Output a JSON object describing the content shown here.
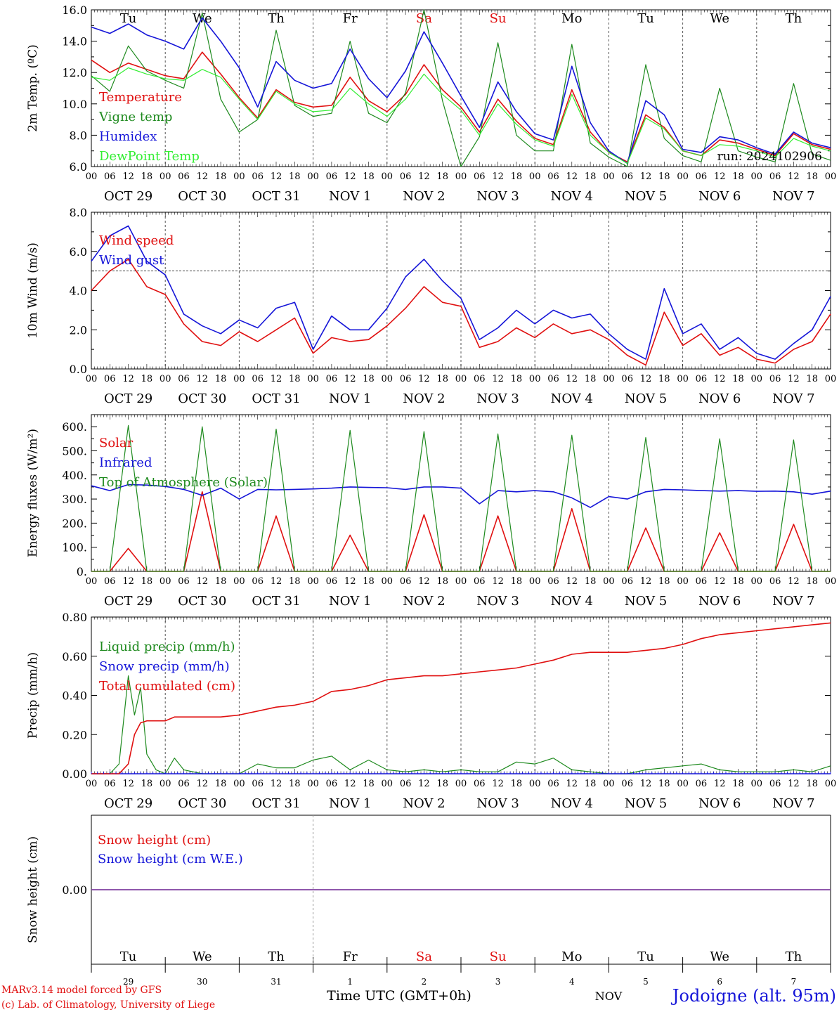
{
  "colors": {
    "red": "#e01010",
    "darkgreen": "#1e8a1e",
    "blue": "#1515d8",
    "lightgreen": "#33ee33",
    "purple": "#8040a0",
    "axis": "#000000",
    "grid": "#555555"
  },
  "day_labels": [
    "Tu",
    "We",
    "Th",
    "Fr",
    "Sa",
    "Su",
    "Mo",
    "Tu",
    "We",
    "Th"
  ],
  "weekend_indices": [
    4,
    5
  ],
  "date_labels": [
    "OCT 29",
    "OCT 30",
    "OCT 31",
    "NOV  1",
    "NOV  2",
    "NOV  3",
    "NOV  4",
    "NOV  5",
    "NOV  6",
    "NOV  7"
  ],
  "hour_labels": [
    "00",
    "06",
    "12",
    "18"
  ],
  "bottom_day_numbers": [
    "29",
    "30",
    "31",
    "1",
    "2",
    "3",
    "4",
    "5",
    "6",
    "7"
  ],
  "footer": {
    "model_line1": "MARv3.14 model forced by GFS",
    "model_line2": "(c) Lab. of Climatology, University of Liege",
    "time_axis_label": "Time UTC (GMT+0h)",
    "month_label": "NOV",
    "station": "Jodoigne (alt. 95m)"
  },
  "chart_data": [
    {
      "type": "line",
      "id": "temp",
      "ylabel": "2m Temp. (ºC)",
      "ylim": [
        6,
        16
      ],
      "yticks": [
        6.0,
        8.0,
        10.0,
        12.0,
        14.0,
        16.0
      ],
      "ytick_labels": [
        "6.0",
        "8.0",
        "10.0",
        "12.0",
        "14.0",
        "16.0"
      ],
      "annotation": "run: 2024102906",
      "legend_position": "top-left",
      "x": [
        0,
        6,
        12,
        18,
        24,
        30,
        36,
        42,
        48,
        54,
        60,
        66,
        72,
        78,
        84,
        90,
        96,
        102,
        108,
        114,
        120,
        126,
        132,
        138,
        144,
        150,
        156,
        162,
        168,
        174,
        180,
        186,
        192,
        198,
        204,
        210,
        216,
        222,
        228,
        234,
        240
      ],
      "series": [
        {
          "name": "Temperature",
          "color": "red",
          "values": [
            12.8,
            12.0,
            12.6,
            12.2,
            11.8,
            11.6,
            13.3,
            11.9,
            10.4,
            9.1,
            10.9,
            10.1,
            9.8,
            9.9,
            11.7,
            10.2,
            9.5,
            10.6,
            12.5,
            10.9,
            9.8,
            8.2,
            10.3,
            8.9,
            7.8,
            7.4,
            10.9,
            8.2,
            6.9,
            6.3,
            9.3,
            8.5,
            7.0,
            6.7,
            7.7,
            7.5,
            7.1,
            6.7,
            8.1,
            7.4,
            7.1
          ]
        },
        {
          "name": "Vigne temp",
          "color": "darkgreen",
          "values": [
            11.8,
            10.8,
            13.7,
            12.1,
            11.5,
            11.0,
            15.8,
            10.3,
            8.2,
            9.0,
            14.7,
            9.9,
            9.2,
            9.4,
            14.0,
            9.4,
            8.8,
            10.7,
            16.2,
            10.2,
            5.5,
            7.9,
            13.9,
            8.0,
            7.0,
            7.0,
            13.8,
            7.5,
            6.6,
            6.0,
            12.5,
            7.8,
            6.7,
            6.3,
            11.0,
            7.0,
            6.6,
            6.3,
            11.3,
            6.8,
            6.4
          ]
        },
        {
          "name": "Humidex",
          "color": "blue",
          "values": [
            14.9,
            14.5,
            15.1,
            14.4,
            14.0,
            13.5,
            15.5,
            14.0,
            12.3,
            9.8,
            12.7,
            11.5,
            11.0,
            11.3,
            13.5,
            11.6,
            10.4,
            12.1,
            14.6,
            12.6,
            10.5,
            8.5,
            11.4,
            9.5,
            8.1,
            7.7,
            12.4,
            8.8,
            7.0,
            6.2,
            10.2,
            9.3,
            7.1,
            6.9,
            7.9,
            7.7,
            7.2,
            6.8,
            8.2,
            7.5,
            7.2
          ]
        },
        {
          "name": "DewPoint Temp",
          "color": "lightgreen",
          "values": [
            11.7,
            11.5,
            12.3,
            11.9,
            11.6,
            11.5,
            12.2,
            11.7,
            10.3,
            9.0,
            10.8,
            10.0,
            9.5,
            9.6,
            11.0,
            10.0,
            9.2,
            10.3,
            11.9,
            10.6,
            9.6,
            8.0,
            10.0,
            8.7,
            7.7,
            7.3,
            10.6,
            8.0,
            6.9,
            6.2,
            9.1,
            8.4,
            7.0,
            6.7,
            7.4,
            7.3,
            7.0,
            6.6,
            7.8,
            7.3,
            7.0
          ]
        }
      ]
    },
    {
      "type": "line",
      "id": "wind",
      "ylabel": "10m Wind (m/s)",
      "ylim": [
        0,
        8
      ],
      "yticks": [
        0.0,
        2.0,
        4.0,
        6.0,
        8.0
      ],
      "ytick_labels": [
        "0.0",
        "2.0",
        "4.0",
        "6.0",
        "8.0"
      ],
      "reference_line": 5.0,
      "legend_position": "top-left",
      "x": [
        0,
        6,
        12,
        18,
        24,
        30,
        36,
        42,
        48,
        54,
        60,
        66,
        72,
        78,
        84,
        90,
        96,
        102,
        108,
        114,
        120,
        126,
        132,
        138,
        144,
        150,
        156,
        162,
        168,
        174,
        180,
        186,
        192,
        198,
        204,
        210,
        216,
        222,
        228,
        234,
        240
      ],
      "series": [
        {
          "name": "Wind speed",
          "color": "red",
          "values": [
            4.0,
            5.0,
            5.6,
            4.2,
            3.8,
            2.3,
            1.4,
            1.2,
            1.9,
            1.4,
            2.0,
            2.6,
            0.8,
            1.6,
            1.4,
            1.5,
            2.2,
            3.1,
            4.2,
            3.4,
            3.2,
            1.1,
            1.4,
            2.1,
            1.6,
            2.3,
            1.8,
            2.0,
            1.5,
            0.7,
            0.2,
            2.9,
            1.2,
            1.8,
            0.7,
            1.1,
            0.5,
            0.3,
            1.0,
            1.4,
            2.8
          ]
        },
        {
          "name": "Wind gust",
          "color": "blue",
          "values": [
            5.5,
            6.8,
            7.3,
            5.5,
            4.8,
            2.8,
            2.2,
            1.8,
            2.5,
            2.1,
            3.1,
            3.4,
            1.0,
            2.7,
            2.0,
            2.0,
            3.1,
            4.7,
            5.6,
            4.5,
            3.6,
            1.5,
            2.1,
            3.0,
            2.3,
            3.0,
            2.6,
            2.8,
            1.8,
            1.0,
            0.5,
            4.1,
            1.8,
            2.3,
            1.0,
            1.6,
            0.8,
            0.5,
            1.3,
            2.0,
            3.7
          ]
        }
      ]
    },
    {
      "type": "line",
      "id": "energy",
      "ylabel": "Energy fluxes (W/m²)",
      "ylim": [
        0,
        650
      ],
      "yticks": [
        0,
        100,
        200,
        300,
        400,
        500,
        600
      ],
      "ytick_labels": [
        "0.",
        "100.",
        "200.",
        "300.",
        "400.",
        "500.",
        "600."
      ],
      "legend_position": "top-left",
      "x": [
        0,
        6,
        12,
        18,
        24,
        30,
        36,
        42,
        48,
        54,
        60,
        66,
        72,
        78,
        84,
        90,
        96,
        102,
        108,
        114,
        120,
        126,
        132,
        138,
        144,
        150,
        156,
        162,
        168,
        174,
        180,
        186,
        192,
        198,
        204,
        210,
        216,
        222,
        228,
        234,
        240
      ],
      "series": [
        {
          "name": "Solar",
          "color": "red",
          "values": [
            0,
            0,
            95,
            0,
            0,
            0,
            330,
            0,
            0,
            0,
            230,
            0,
            0,
            0,
            150,
            0,
            0,
            0,
            235,
            0,
            0,
            0,
            230,
            0,
            0,
            0,
            260,
            0,
            0,
            0,
            180,
            0,
            0,
            0,
            160,
            0,
            0,
            0,
            195,
            0,
            0
          ]
        },
        {
          "name": "Infrared",
          "color": "blue",
          "values": [
            355,
            335,
            360,
            358,
            352,
            340,
            315,
            345,
            300,
            340,
            338,
            340,
            342,
            345,
            350,
            348,
            347,
            340,
            350,
            350,
            345,
            280,
            335,
            330,
            335,
            330,
            305,
            265,
            310,
            300,
            330,
            340,
            338,
            335,
            333,
            335,
            332,
            333,
            330,
            320,
            333
          ]
        },
        {
          "name": "Top of Atmosphere (Solar)",
          "color": "darkgreen",
          "values": [
            0,
            0,
            605,
            0,
            0,
            0,
            600,
            0,
            0,
            0,
            590,
            0,
            0,
            0,
            585,
            0,
            0,
            0,
            580,
            0,
            0,
            0,
            570,
            0,
            0,
            0,
            565,
            0,
            0,
            0,
            555,
            0,
            0,
            0,
            550,
            0,
            0,
            0,
            545,
            0,
            0
          ]
        }
      ]
    },
    {
      "type": "line",
      "id": "precip",
      "ylabel": "Precip (mm/h)",
      "ylim": [
        0,
        0.8
      ],
      "yticks": [
        0.0,
        0.2,
        0.4,
        0.6,
        0.8
      ],
      "ytick_labels": [
        "0.00",
        "0.20",
        "0.40",
        "0.60",
        "0.80"
      ],
      "legend_position": "top-left",
      "x": [
        0,
        6,
        9,
        12,
        14,
        16,
        18,
        21,
        24,
        27,
        30,
        36,
        42,
        48,
        54,
        60,
        66,
        72,
        78,
        84,
        90,
        96,
        102,
        108,
        114,
        120,
        126,
        132,
        138,
        144,
        150,
        156,
        162,
        168,
        174,
        180,
        186,
        192,
        198,
        204,
        210,
        216,
        222,
        228,
        234,
        240
      ],
      "series": [
        {
          "name": "Liquid precip (mm/h)",
          "color": "darkgreen",
          "values": [
            0,
            0,
            0.05,
            0.5,
            0.3,
            0.44,
            0.1,
            0.02,
            0,
            0.08,
            0.02,
            0,
            0,
            0,
            0.05,
            0.03,
            0.03,
            0.07,
            0.09,
            0.02,
            0.07,
            0.02,
            0.01,
            0.02,
            0.01,
            0.02,
            0.01,
            0.01,
            0.06,
            0.05,
            0.08,
            0.02,
            0.01,
            0,
            0,
            0.02,
            0.03,
            0.04,
            0.05,
            0.02,
            0.01,
            0.01,
            0.01,
            0.02,
            0.01,
            0.04
          ]
        },
        {
          "name": "Snow precip (mm/h)",
          "color": "blue",
          "values": [
            0,
            0,
            0,
            0,
            0,
            0,
            0,
            0,
            0,
            0,
            0,
            0,
            0,
            0,
            0,
            0,
            0,
            0,
            0,
            0,
            0,
            0,
            0,
            0,
            0,
            0,
            0,
            0,
            0,
            0,
            0,
            0,
            0,
            0,
            0,
            0,
            0,
            0,
            0,
            0,
            0,
            0,
            0,
            0,
            0,
            0
          ]
        },
        {
          "name": "Total cumulated (cm)",
          "color": "red",
          "values": [
            0,
            0,
            0,
            0.05,
            0.2,
            0.26,
            0.27,
            0.27,
            0.27,
            0.29,
            0.29,
            0.29,
            0.29,
            0.3,
            0.32,
            0.34,
            0.35,
            0.37,
            0.42,
            0.43,
            0.45,
            0.48,
            0.49,
            0.5,
            0.5,
            0.51,
            0.52,
            0.53,
            0.54,
            0.56,
            0.58,
            0.61,
            0.62,
            0.62,
            0.62,
            0.63,
            0.64,
            0.66,
            0.69,
            0.71,
            0.72,
            0.73,
            0.74,
            0.75,
            0.76,
            0.77
          ]
        }
      ]
    },
    {
      "type": "line",
      "id": "snow",
      "ylabel": "Snow height (cm)",
      "ylim": [
        -1,
        1
      ],
      "yticks": [
        0.0
      ],
      "ytick_labels": [
        "0.00"
      ],
      "legend_position": "top-left",
      "x": [
        0,
        240
      ],
      "series": [
        {
          "name": "Snow height (cm)",
          "color": "red",
          "values": [
            0,
            0
          ]
        },
        {
          "name": "Snow height (cm W.E.)",
          "color": "blue",
          "values": [
            0,
            0
          ]
        }
      ]
    }
  ]
}
